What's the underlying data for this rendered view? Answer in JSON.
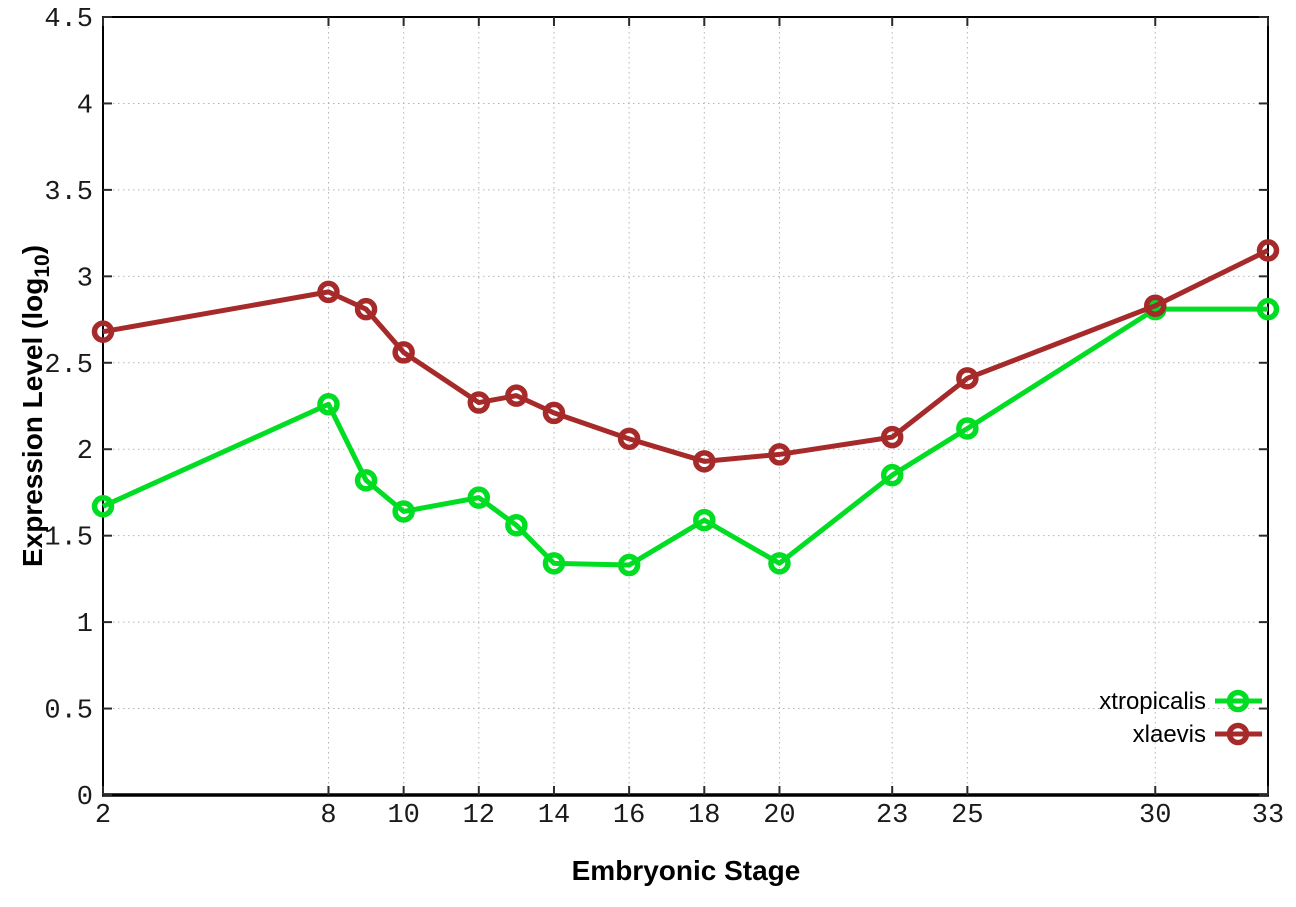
{
  "chart_data": {
    "type": "line",
    "title": "",
    "xlabel": "Embryonic Stage",
    "ylabel": "Expression Level (log10)",
    "ylabel_parts": {
      "base": "Expression Level (log",
      "sub": "10",
      "close": ")"
    },
    "x": [
      2,
      8,
      9,
      10,
      12,
      13,
      14,
      16,
      18,
      20,
      23,
      25,
      30,
      33
    ],
    "series": [
      {
        "name": "xtropicalis",
        "color": "#00dd22",
        "values": [
          1.67,
          2.26,
          1.82,
          1.64,
          1.72,
          1.56,
          1.34,
          1.33,
          1.59,
          1.34,
          1.85,
          2.12,
          2.81,
          2.81
        ]
      },
      {
        "name": "xlaevis",
        "color": "#a62a2a",
        "values": [
          2.68,
          2.91,
          2.81,
          2.56,
          2.27,
          2.31,
          2.21,
          2.06,
          1.93,
          1.97,
          2.07,
          2.41,
          2.83,
          3.15
        ]
      }
    ],
    "xticks": [
      2,
      8,
      10,
      12,
      14,
      16,
      18,
      20,
      23,
      25,
      30,
      33
    ],
    "yticks": [
      "0",
      "0.5",
      "1",
      "1.5",
      "2",
      "2.5",
      "3",
      "3.5",
      "4",
      "4.5"
    ],
    "xlim": [
      2,
      33
    ],
    "ylim": [
      0,
      4.5
    ],
    "grid": true,
    "legend_position": "inside-bottom-right",
    "legend_entries": [
      "xtropicalis",
      "xlaevis"
    ]
  },
  "colors": {
    "background": "#ffffff",
    "grid": "#b5b5b5",
    "axis": "#000000",
    "tick": "#2a2a2a",
    "xtropicalis": "#00dd22",
    "xlaevis": "#a62a2a"
  }
}
